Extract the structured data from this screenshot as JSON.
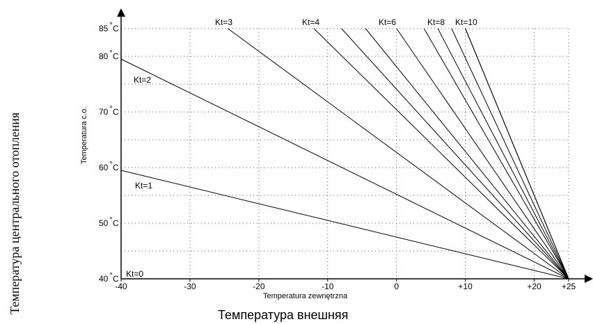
{
  "chart_data": {
    "type": "line",
    "x_axis_label": "Temperatura zewnętrzna",
    "y_axis_label": "Temperatura c.o.",
    "outer_x_label": "Температура внешняя",
    "outer_y_label": "Температура центрального отопления",
    "xlim": [
      -40,
      25
    ],
    "ylim": [
      40,
      85
    ],
    "x_ticks": [
      {
        "v": -40,
        "label": "-40"
      },
      {
        "v": -30,
        "label": "-30"
      },
      {
        "v": -20,
        "label": "-20"
      },
      {
        "v": -10,
        "label": "-10"
      },
      {
        "v": 0,
        "label": "0"
      },
      {
        "v": 10,
        "label": "+10"
      },
      {
        "v": 20,
        "label": "+20"
      },
      {
        "v": 25,
        "label": "+25"
      }
    ],
    "y_ticks": [
      {
        "v": 40,
        "label": "40"
      },
      {
        "v": 50,
        "label": "50"
      },
      {
        "v": 60,
        "label": "60"
      },
      {
        "v": 70,
        "label": "70"
      },
      {
        "v": 80,
        "label": "80"
      },
      {
        "v": 85,
        "label": "85"
      }
    ],
    "y_unit": "°C",
    "grid": "dotted",
    "series": [
      {
        "name": "Kt=0",
        "points": [
          [
            -40,
            40
          ],
          [
            25,
            40
          ]
        ]
      },
      {
        "name": "Kt=1",
        "points": [
          [
            -40,
            59.5
          ],
          [
            25,
            40
          ]
        ]
      },
      {
        "name": "Kt=2",
        "points": [
          [
            -40,
            79.5
          ],
          [
            25,
            40
          ]
        ]
      },
      {
        "name": "Kt=3",
        "points": [
          [
            -24.5,
            85
          ],
          [
            25,
            40
          ]
        ]
      },
      {
        "name": "Kt=4",
        "points": [
          [
            -12,
            85
          ],
          [
            25,
            40
          ]
        ]
      },
      {
        "name": "Kt=6",
        "points": [
          [
            -4.5,
            85
          ],
          [
            25,
            40
          ]
        ]
      },
      {
        "name": "Kt=8",
        "points": [
          [
            4,
            85
          ],
          [
            25,
            40
          ]
        ]
      },
      {
        "name": "Kt=10",
        "points": [
          [
            10,
            85
          ],
          [
            25,
            40
          ]
        ]
      },
      {
        "name": "",
        "points": [
          [
            8,
            85
          ],
          [
            25,
            40
          ]
        ]
      },
      {
        "name": "",
        "points": [
          [
            6,
            85
          ],
          [
            25,
            40
          ]
        ]
      },
      {
        "name": "",
        "points": [
          [
            0,
            85
          ],
          [
            25,
            40
          ]
        ]
      },
      {
        "name": "",
        "points": [
          [
            -8,
            85
          ],
          [
            25,
            40
          ]
        ]
      },
      {
        "name": "",
        "points": [
          [
            10,
            85
          ],
          [
            25,
            40
          ]
        ]
      }
    ]
  }
}
